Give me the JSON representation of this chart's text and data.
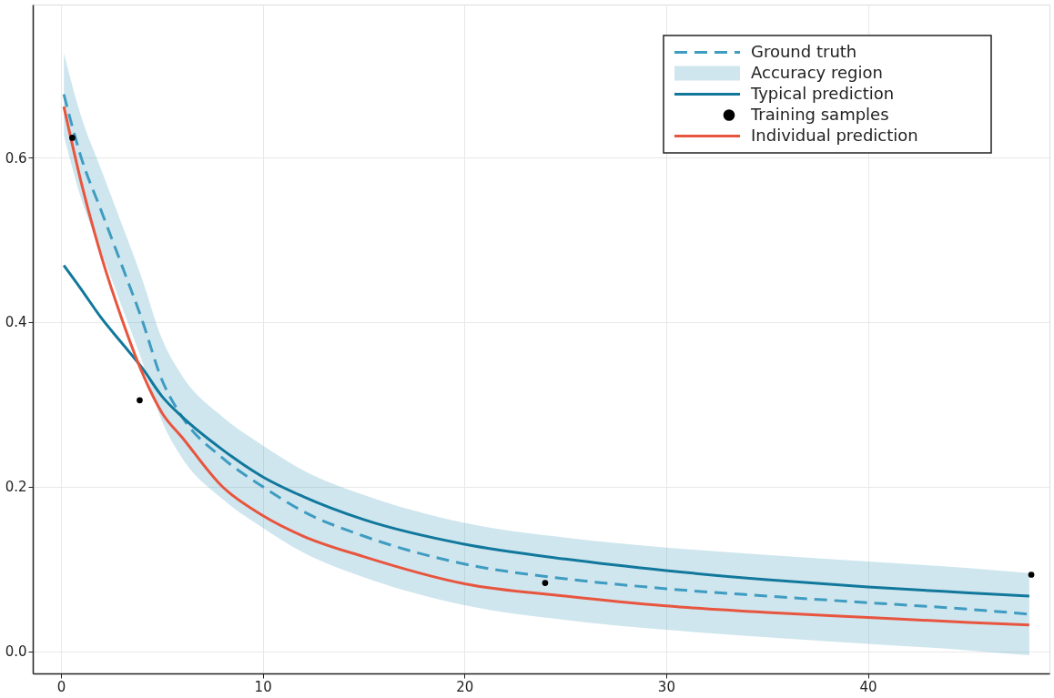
{
  "chart_data": {
    "type": "line",
    "x": [
      0.14,
      1,
      2,
      3,
      4,
      5,
      6,
      8,
      10,
      12,
      15,
      20,
      25,
      30,
      35,
      40,
      45,
      48
    ],
    "series": [
      {
        "name": "Ground truth",
        "type": "line",
        "line_style": "dashed",
        "color": "#3f9cc1",
        "values": [
          0.677,
          0.6,
          0.535,
          0.47,
          0.404,
          0.33,
          0.285,
          0.235,
          0.2,
          0.17,
          0.14,
          0.106,
          0.088,
          0.076,
          0.067,
          0.059,
          0.051,
          0.045
        ],
        "lower": [
          0.627,
          0.55,
          0.485,
          0.42,
          0.354,
          0.28,
          0.235,
          0.185,
          0.15,
          0.12,
          0.09,
          0.056,
          0.038,
          0.026,
          0.017,
          0.009,
          0.001,
          -0.005
        ],
        "upper": [
          0.727,
          0.65,
          0.585,
          0.52,
          0.454,
          0.38,
          0.335,
          0.285,
          0.25,
          0.22,
          0.19,
          0.156,
          0.138,
          0.126,
          0.117,
          0.109,
          0.101,
          0.095
        ]
      },
      {
        "name": "Typical prediction",
        "type": "line",
        "line_style": "solid",
        "color": "#11789c",
        "values": [
          0.469,
          0.44,
          0.405,
          0.375,
          0.345,
          0.31,
          0.285,
          0.245,
          0.212,
          0.188,
          0.16,
          0.13,
          0.112,
          0.098,
          0.087,
          0.078,
          0.071,
          0.067
        ]
      },
      {
        "name": "Training samples",
        "type": "scatter",
        "marker": "circle",
        "color": "#000000",
        "x": [
          0.56,
          3.9,
          24.0,
          48.1
        ],
        "values": [
          0.624,
          0.305,
          0.083,
          0.093
        ]
      },
      {
        "name": "Individual prediction",
        "type": "line",
        "line_style": "solid",
        "color": "#e8553e",
        "values": [
          0.662,
          0.57,
          0.48,
          0.405,
          0.34,
          0.29,
          0.26,
          0.2,
          0.165,
          0.14,
          0.115,
          0.082,
          0.067,
          0.055,
          0.047,
          0.041,
          0.035,
          0.032
        ]
      }
    ],
    "annotations": [
      "Accuracy region"
    ],
    "xlim": [
      -1.4,
      49
    ],
    "ylim": [
      -0.027,
      0.786
    ],
    "xticks": [
      0,
      10,
      20,
      30,
      40
    ],
    "yticks": [
      {
        "value": 0,
        "label": "0.0"
      },
      {
        "value": 0.2,
        "label": "0.2"
      },
      {
        "value": 0.4,
        "label": "0.4"
      },
      {
        "value": 0.6,
        "label": "0.6"
      }
    ],
    "grid": true,
    "legend": "top right"
  }
}
